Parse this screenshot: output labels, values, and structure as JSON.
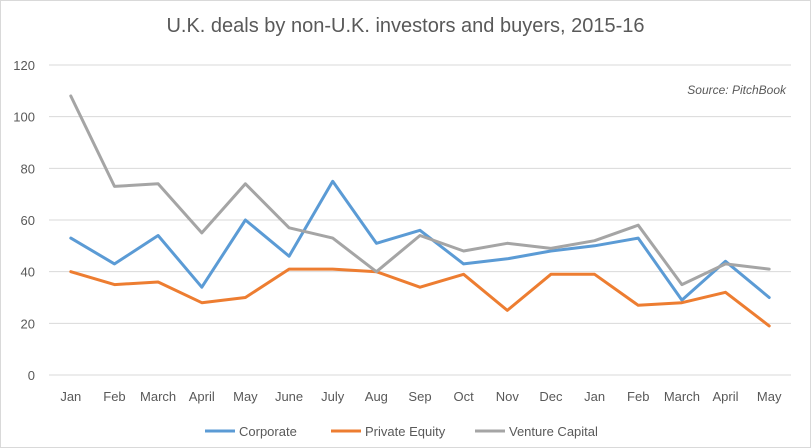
{
  "chart_data": {
    "type": "line",
    "title": "U.K. deals by non-U.K. investors and buyers, 2015-16",
    "source": "Source: PitchBook",
    "categories": [
      "Jan",
      "Feb",
      "March",
      "April",
      "May",
      "June",
      "July",
      "Aug",
      "Sep",
      "Oct",
      "Nov",
      "Dec",
      "Jan",
      "Feb",
      "March",
      "April",
      "May"
    ],
    "series": [
      {
        "name": "Corporate",
        "color": "#5b9bd5",
        "values": [
          53,
          43,
          54,
          34,
          60,
          46,
          75,
          51,
          56,
          43,
          45,
          48,
          50,
          53,
          29,
          44,
          30
        ]
      },
      {
        "name": "Private Equity",
        "color": "#ed7d31",
        "values": [
          40,
          35,
          36,
          28,
          30,
          41,
          41,
          40,
          34,
          39,
          25,
          39,
          39,
          27,
          28,
          32,
          19
        ]
      },
      {
        "name": "Venture Capital",
        "color": "#a5a5a5",
        "values": [
          108,
          73,
          74,
          55,
          74,
          57,
          53,
          40,
          54,
          48,
          51,
          49,
          52,
          58,
          35,
          43,
          41
        ]
      }
    ],
    "ylim": [
      0,
      120
    ],
    "yticks": [
      0,
      20,
      40,
      60,
      80,
      100,
      120
    ],
    "grid": true,
    "legend": "bottom"
  }
}
